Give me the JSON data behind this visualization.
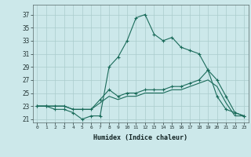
{
  "bg_color": "#cce8ea",
  "grid_color": "#aacccc",
  "line_color": "#1a6b5a",
  "xlabel": "Humidex (Indice chaleur)",
  "xlim": [
    -0.5,
    23.5
  ],
  "ylim": [
    20.5,
    38.5
  ],
  "yticks": [
    21,
    23,
    25,
    27,
    29,
    31,
    33,
    35,
    37
  ],
  "xticks": [
    0,
    1,
    2,
    3,
    4,
    5,
    6,
    7,
    8,
    9,
    10,
    11,
    12,
    13,
    14,
    15,
    16,
    17,
    18,
    19,
    20,
    21,
    22,
    23
  ],
  "xtick_labels": [
    "0",
    "1",
    "2",
    "3",
    "4",
    "5",
    "6",
    "7",
    "8",
    "9",
    "10",
    "11",
    "12",
    "13",
    "14",
    "15",
    "16",
    "17",
    "18",
    "19",
    "20",
    "21",
    "22",
    "23"
  ],
  "series1_x": [
    0,
    1,
    2,
    3,
    4,
    5,
    6,
    7,
    8,
    9,
    10,
    11,
    12,
    13,
    14,
    15,
    16,
    17,
    18,
    19,
    20,
    21,
    22,
    23
  ],
  "series1_y": [
    23,
    23,
    22.5,
    22.5,
    22,
    21,
    21.5,
    21.5,
    29,
    30.5,
    33,
    36.5,
    37,
    34,
    33,
    33.5,
    32,
    31.5,
    31,
    28.5,
    24.5,
    22.5,
    22,
    21.5
  ],
  "series2_x": [
    0,
    1,
    2,
    3,
    4,
    5,
    6,
    7,
    8,
    9,
    10,
    11,
    12,
    13,
    14,
    15,
    16,
    17,
    18,
    19,
    20,
    21,
    22,
    23
  ],
  "series2_y": [
    23,
    23,
    23,
    23,
    22.5,
    22.5,
    22.5,
    24,
    25.5,
    24.5,
    25,
    25,
    25.5,
    25.5,
    25.5,
    26,
    26,
    26.5,
    27,
    28.5,
    27,
    24.5,
    22,
    21.5
  ],
  "series3_x": [
    0,
    1,
    2,
    3,
    4,
    5,
    6,
    7,
    8,
    9,
    10,
    11,
    12,
    13,
    14,
    15,
    16,
    17,
    18,
    19,
    20,
    21,
    22,
    23
  ],
  "series3_y": [
    23,
    23,
    23,
    23,
    22.5,
    22.5,
    22.5,
    23.5,
    24.5,
    24,
    24.5,
    24.5,
    25,
    25,
    25,
    25.5,
    25.5,
    26,
    26.5,
    27,
    26,
    23.5,
    21.5,
    21.5
  ]
}
